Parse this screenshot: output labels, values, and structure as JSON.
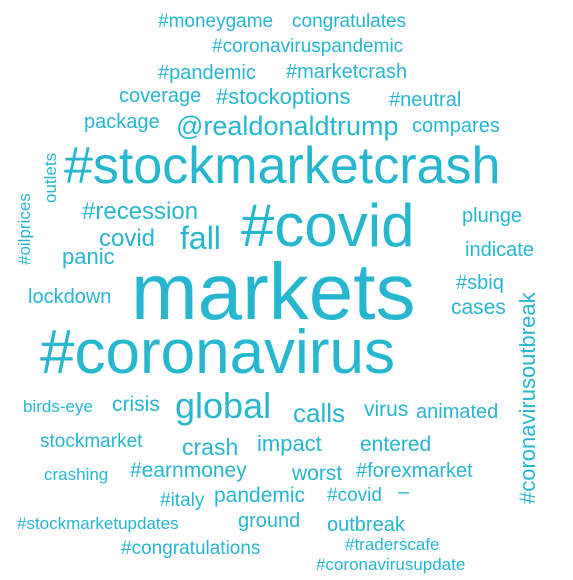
{
  "palette": {
    "word": "#27b6cf",
    "word_alt": "#2ec2d6",
    "background": "#ffffff"
  },
  "words": [
    {
      "text": "#moneygame"
    },
    {
      "text": "congratulates"
    },
    {
      "text": "#coronaviruspandemic"
    },
    {
      "text": "#pandemic"
    },
    {
      "text": "#marketcrash"
    },
    {
      "text": "coverage"
    },
    {
      "text": "#stockoptions"
    },
    {
      "text": "#neutral"
    },
    {
      "text": "package"
    },
    {
      "text": "@realdonaldtrump"
    },
    {
      "text": "compares"
    },
    {
      "text": "#stockmarketcrash"
    },
    {
      "text": "#oilprices"
    },
    {
      "text": "outlets"
    },
    {
      "text": "#recession"
    },
    {
      "text": "covid"
    },
    {
      "text": "fall"
    },
    {
      "text": "#covid"
    },
    {
      "text": "plunge"
    },
    {
      "text": "indicate"
    },
    {
      "text": "panic"
    },
    {
      "text": "markets"
    },
    {
      "text": "#sbiq"
    },
    {
      "text": "#coronavirusoutbreak"
    },
    {
      "text": "lockdown"
    },
    {
      "text": "cases"
    },
    {
      "text": "#coronavirus"
    },
    {
      "text": "birds-eye"
    },
    {
      "text": "crisis"
    },
    {
      "text": "global"
    },
    {
      "text": "calls"
    },
    {
      "text": "virus"
    },
    {
      "text": "animated"
    },
    {
      "text": "stockmarket"
    },
    {
      "text": "crash"
    },
    {
      "text": "impact"
    },
    {
      "text": "entered"
    },
    {
      "text": "crashing"
    },
    {
      "text": "#earnmoney"
    },
    {
      "text": "worst"
    },
    {
      "text": "#forexmarket"
    },
    {
      "text": "#italy"
    },
    {
      "text": "pandemic"
    },
    {
      "text": "#covid"
    },
    {
      "text": "–"
    },
    {
      "text": "#stockmarketupdates"
    },
    {
      "text": "ground"
    },
    {
      "text": "outbreak"
    },
    {
      "text": "#congratulations"
    },
    {
      "text": "#traderscafe"
    },
    {
      "text": "#coronavirusupdate"
    }
  ]
}
